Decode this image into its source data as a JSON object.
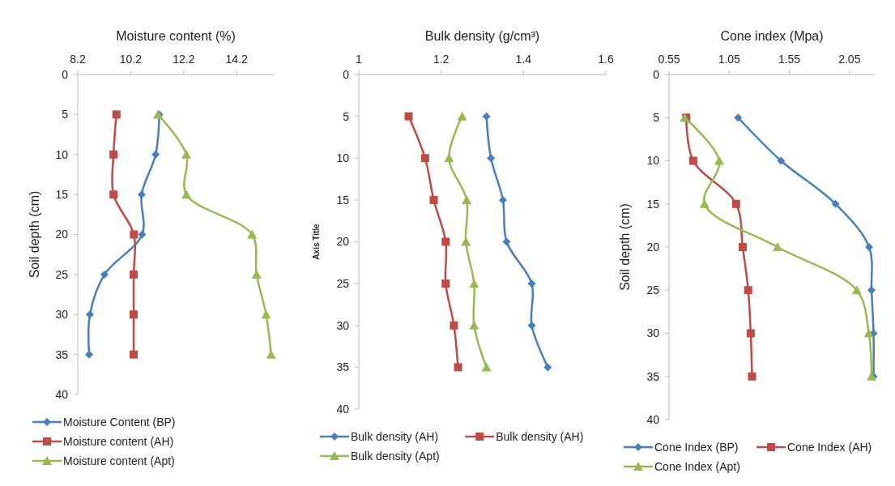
{
  "chart_data": [
    {
      "type": "line",
      "xlabel": "Moisture content (%)",
      "ylabel": "Soil depth (cm)",
      "xlim": [
        8.2,
        15.6
      ],
      "xticks": [
        8.2,
        10.2,
        12.2,
        14.2
      ],
      "ylim": [
        40,
        0
      ],
      "yticks": [
        0,
        5,
        10,
        15,
        20,
        25,
        30,
        35,
        40
      ],
      "legend": "bottom",
      "grid": false,
      "series": [
        {
          "name": "Moisture Content (BP)",
          "color": "#4a7ebb",
          "marker": "diamond",
          "x": [
            11.28,
            11.14,
            10.61,
            10.63,
            9.21,
            8.66,
            8.63
          ],
          "values": [
            5,
            10,
            15,
            20,
            25,
            30,
            35
          ]
        },
        {
          "name": "Moisture content (AH)",
          "color": "#be4b48",
          "marker": "square",
          "x": [
            9.66,
            9.55,
            9.55,
            10.32,
            10.31,
            10.31,
            10.31
          ],
          "values": [
            5,
            10,
            15,
            20,
            25,
            30,
            35
          ]
        },
        {
          "name": "Moisture content (Apt)",
          "color": "#98b954",
          "marker": "triangle",
          "x": [
            11.23,
            12.3,
            12.3,
            14.78,
            14.95,
            15.31,
            15.5
          ],
          "values": [
            5,
            10,
            15,
            20,
            25,
            30,
            35
          ]
        }
      ]
    },
    {
      "type": "line",
      "xlabel": "Bulk density (g/cm³)",
      "ylabel": "Axis Title",
      "xlim": [
        1,
        1.6
      ],
      "xticks": [
        1,
        1.2,
        1.4,
        1.6
      ],
      "ylim": [
        40,
        0
      ],
      "yticks": [
        0,
        5,
        10,
        15,
        20,
        25,
        30,
        35,
        40
      ],
      "legend": "bottom",
      "grid": false,
      "series": [
        {
          "name": "Bulk density (AH)",
          "color": "#4a7ebb",
          "marker": "diamond",
          "x": [
            1.31,
            1.321,
            1.35,
            1.359,
            1.42,
            1.42,
            1.459
          ],
          "values": [
            5,
            10,
            15,
            20,
            25,
            30,
            35
          ]
        },
        {
          "name": "Bulk density (AH)",
          "color": "#be4b48",
          "marker": "square",
          "x": [
            1.121,
            1.161,
            1.182,
            1.211,
            1.211,
            1.231,
            1.241
          ],
          "values": [
            5,
            10,
            15,
            20,
            25,
            30,
            35
          ]
        },
        {
          "name": "Bulk density (Apt)",
          "color": "#98b954",
          "marker": "triangle",
          "x": [
            1.251,
            1.219,
            1.262,
            1.26,
            1.28,
            1.28,
            1.31
          ],
          "values": [
            5,
            10,
            15,
            20,
            25,
            30,
            35
          ]
        }
      ]
    },
    {
      "type": "line",
      "xlabel": "Cone index (Mpa)",
      "ylabel": "Soil depth (cm)",
      "xlim": [
        0.55,
        2.26
      ],
      "xticks": [
        0.55,
        1.05,
        1.55,
        2.05
      ],
      "ylim": [
        40,
        0
      ],
      "yticks": [
        0,
        5,
        10,
        15,
        20,
        25,
        30,
        35,
        40
      ],
      "legend": "bottom",
      "grid": false,
      "series": [
        {
          "name": "Cone Index (BP)",
          "color": "#4a7ebb",
          "marker": "diamond",
          "x": [
            1.124,
            1.481,
            1.934,
            2.213,
            2.233,
            2.25,
            2.25
          ],
          "values": [
            5,
            10,
            15,
            20,
            25,
            30,
            35
          ]
        },
        {
          "name": "Cone Index (AH)",
          "color": "#be4b48",
          "marker": "square",
          "x": [
            0.693,
            0.751,
            1.108,
            1.162,
            1.208,
            1.229,
            1.24
          ],
          "values": [
            5,
            10,
            15,
            20,
            25,
            30,
            35
          ]
        },
        {
          "name": "Cone Index (Apt)",
          "color": "#98b954",
          "marker": "triangle",
          "x": [
            0.679,
            0.967,
            0.845,
            1.452,
            2.11,
            2.211,
            2.233
          ],
          "values": [
            5,
            10,
            15,
            20,
            25,
            30,
            35
          ]
        }
      ]
    }
  ]
}
